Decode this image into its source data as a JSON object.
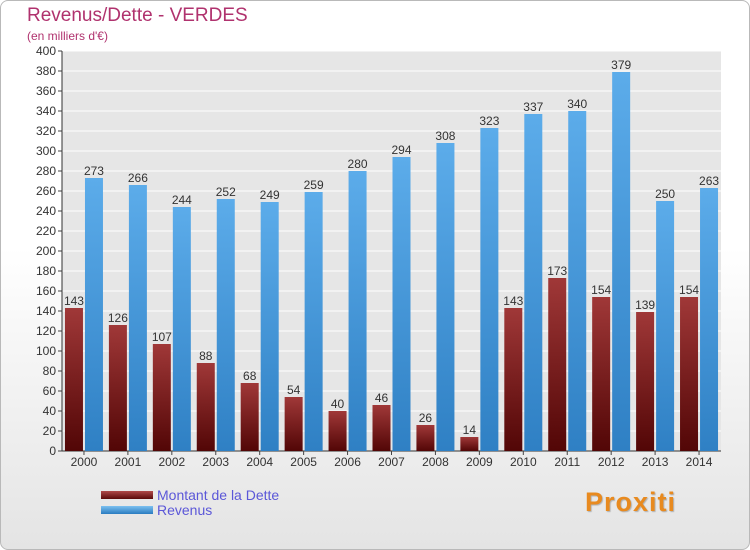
{
  "chart_data": {
    "type": "bar",
    "title": "Revenus/Dette - VERDES",
    "subtitle": "(en milliers d'€)",
    "categories": [
      "2000",
      "2001",
      "2002",
      "2003",
      "2004",
      "2005",
      "2006",
      "2007",
      "2008",
      "2009",
      "2010",
      "2011",
      "2012",
      "2013",
      "2014"
    ],
    "series": [
      {
        "name": "Montant de la Dette",
        "values": [
          143,
          126,
          107,
          88,
          68,
          54,
          40,
          46,
          26,
          14,
          143,
          173,
          154,
          139,
          154
        ],
        "color": "#7d1c1c"
      },
      {
        "name": "Revenus",
        "values": [
          273,
          266,
          244,
          252,
          249,
          259,
          280,
          294,
          308,
          323,
          337,
          340,
          379,
          250,
          263
        ],
        "color": "#4aa0e0"
      }
    ],
    "ylim": [
      0,
      400
    ],
    "yticks": [
      0,
      20,
      40,
      60,
      80,
      100,
      120,
      140,
      160,
      180,
      200,
      220,
      240,
      260,
      280,
      300,
      320,
      340,
      360,
      380,
      400
    ],
    "grid": true,
    "legend_position": "bottom-left"
  },
  "brand": {
    "logo_text": "Proxiti"
  }
}
